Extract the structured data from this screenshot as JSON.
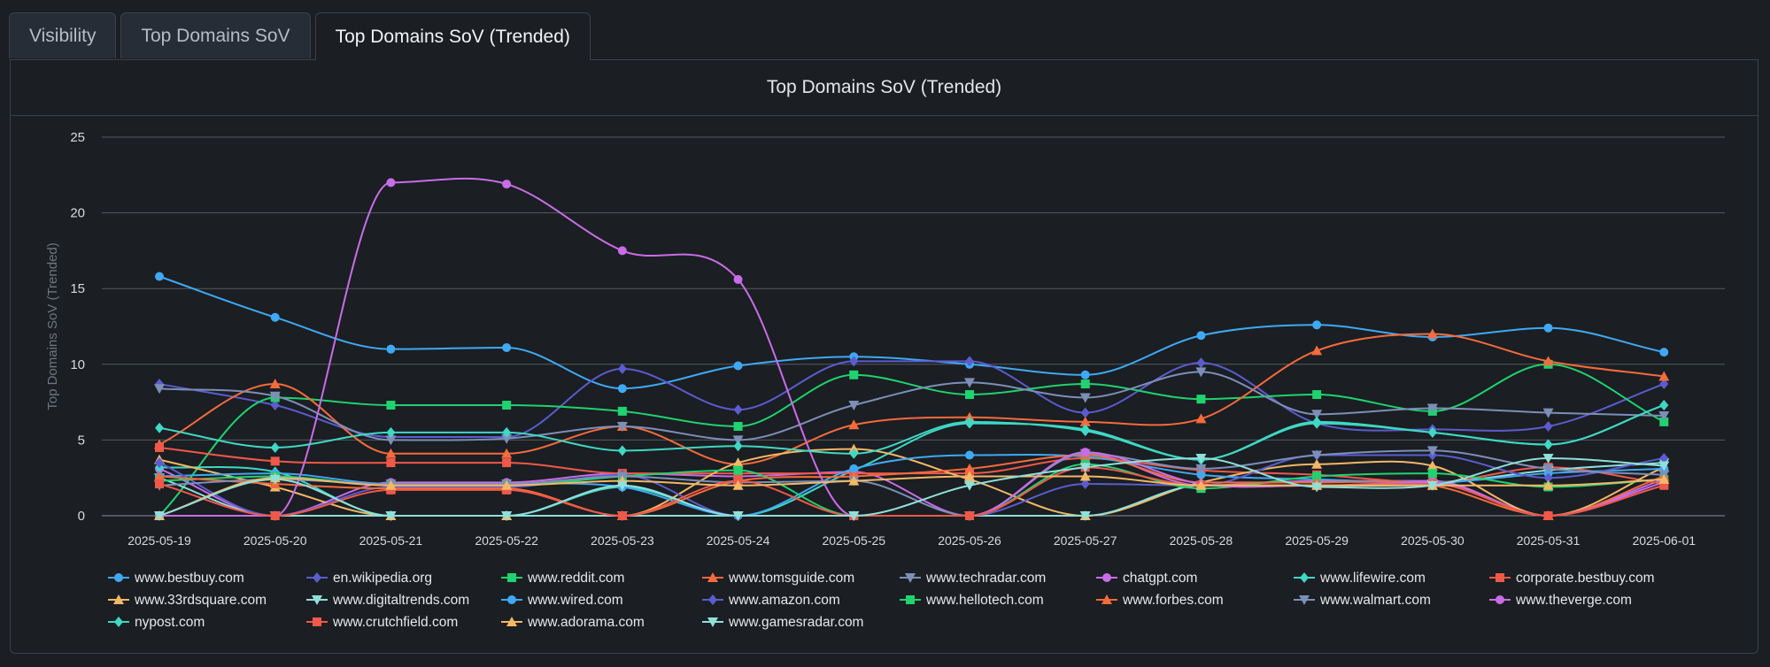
{
  "tabs": [
    {
      "label": "Visibility",
      "active": false
    },
    {
      "label": "Top Domains SoV",
      "active": false
    },
    {
      "label": "Top Domains SoV (Trended)",
      "active": true
    }
  ],
  "panel": {
    "title": "Top Domains SoV (Trended)"
  },
  "chart_data": {
    "type": "line",
    "ylabel": "Top Domains SoV (Trended)",
    "ylim": [
      0,
      25
    ],
    "yticks": [
      0,
      5,
      10,
      15,
      20,
      25
    ],
    "grid": true,
    "legend_position": "bottom",
    "x": [
      "2025-05-19",
      "2025-05-20",
      "2025-05-21",
      "2025-05-22",
      "2025-05-23",
      "2025-05-24",
      "2025-05-25",
      "2025-05-26",
      "2025-05-27",
      "2025-05-28",
      "2025-05-29",
      "2025-05-30",
      "2025-05-31",
      "2025-06-01"
    ],
    "series": [
      {
        "name": "www.bestbuy.com",
        "color": "#3fa9f5",
        "marker": "circle",
        "values": [
          15.8,
          13.1,
          11.0,
          11.1,
          8.4,
          9.9,
          10.5,
          10.0,
          9.3,
          11.9,
          12.6,
          11.8,
          12.4,
          10.8
        ]
      },
      {
        "name": "en.wikipedia.org",
        "color": "#5b5ccf",
        "marker": "diamond",
        "values": [
          8.7,
          7.3,
          5.2,
          5.2,
          9.7,
          7.0,
          10.2,
          10.2,
          6.8,
          10.1,
          6.1,
          5.7,
          5.9,
          8.7
        ]
      },
      {
        "name": "www.reddit.com",
        "color": "#1fd36f",
        "marker": "square",
        "values": [
          0,
          7.8,
          7.3,
          7.3,
          6.9,
          5.9,
          9.3,
          8.0,
          8.7,
          7.7,
          8.0,
          6.9,
          10.0,
          6.2
        ]
      },
      {
        "name": "www.tomsguide.com",
        "color": "#f56b3c",
        "marker": "triangle",
        "values": [
          4.7,
          8.7,
          4.1,
          4.1,
          5.9,
          3.4,
          6.0,
          6.5,
          6.2,
          6.4,
          10.9,
          12.0,
          10.2,
          9.2
        ]
      },
      {
        "name": "www.techradar.com",
        "color": "#7d8fb8",
        "marker": "triangle-down",
        "values": [
          8.4,
          7.9,
          5.0,
          5.1,
          5.9,
          5.0,
          7.3,
          8.8,
          7.8,
          9.5,
          6.7,
          7.1,
          6.8,
          6.6
        ]
      },
      {
        "name": "chatgpt.com",
        "color": "#c86de8",
        "marker": "circle",
        "values": [
          3.1,
          0,
          2.2,
          2.2,
          2.8,
          2.6,
          2.9,
          0,
          4.1,
          2.0,
          2.3,
          2.3,
          0,
          2.4
        ]
      },
      {
        "name": "www.lifewire.com",
        "color": "#3fd8c4",
        "marker": "diamond",
        "values": [
          3.2,
          2.9,
          0,
          0,
          1.9,
          0,
          3.0,
          6.1,
          5.7,
          3.7,
          6.1,
          5.5,
          4.7,
          7.3
        ]
      },
      {
        "name": "corporate.bestbuy.com",
        "color": "#f0584a",
        "marker": "square",
        "values": [
          4.5,
          3.6,
          3.5,
          3.5,
          2.8,
          2.8,
          2.8,
          2.8,
          3.8,
          3.0,
          2.7,
          2.2,
          3.2,
          2.1
        ]
      },
      {
        "name": "www.33rdsquare.com",
        "color": "#f2b866",
        "marker": "triangle",
        "values": [
          3.7,
          1.9,
          0,
          0,
          0,
          3.5,
          4.4,
          2.4,
          0,
          2.2,
          3.4,
          3.3,
          0,
          3.2
        ]
      },
      {
        "name": "www.digitaltrends.com",
        "color": "#8fe0da",
        "marker": "triangle-down",
        "values": [
          2.5,
          0,
          0,
          0,
          0,
          0,
          0,
          0,
          0,
          2.0,
          2.0,
          2.1,
          3.0,
          3.5
        ]
      },
      {
        "name": "www.wired.com",
        "color": "#3fa9f5",
        "marker": "circle",
        "values": [
          2.6,
          2.8,
          2.1,
          2.1,
          1.9,
          0,
          3.1,
          4.0,
          3.9,
          2.7,
          2.4,
          2.2,
          2.8,
          3.1
        ]
      },
      {
        "name": "www.amazon.com",
        "color": "#5b5ccf",
        "marker": "diamond",
        "values": [
          3.5,
          0,
          1.9,
          1.9,
          2.7,
          0,
          0,
          0,
          2.1,
          2.0,
          4.0,
          4.0,
          2.5,
          3.8
        ]
      },
      {
        "name": "www.hellotech.com",
        "color": "#1fd36f",
        "marker": "square",
        "values": [
          2.3,
          2.6,
          2.0,
          2.0,
          2.6,
          3.0,
          0,
          0,
          3.4,
          1.8,
          2.6,
          2.8,
          1.9,
          2.4
        ]
      },
      {
        "name": "www.forbes.com",
        "color": "#f56b3c",
        "marker": "triangle",
        "values": [
          2.6,
          2.1,
          1.8,
          1.8,
          0,
          2.3,
          2.6,
          3.1,
          4.0,
          2.2,
          2.2,
          2.0,
          0,
          2.6
        ]
      },
      {
        "name": "www.walmart.com",
        "color": "#7d8fb8",
        "marker": "triangle-down",
        "values": [
          2.0,
          2.4,
          2.1,
          2.1,
          2.6,
          2.2,
          2.3,
          0,
          4.1,
          3.1,
          4.0,
          4.3,
          3.1,
          2.7
        ]
      },
      {
        "name": "www.theverge.com",
        "color": "#c86de8",
        "marker": "circle",
        "values": [
          0,
          0,
          22.0,
          21.9,
          17.5,
          15.6,
          0,
          0,
          4.2,
          2.1,
          2.0,
          2.2,
          0,
          2.2
        ]
      },
      {
        "name": "nypost.com",
        "color": "#3fd8c4",
        "marker": "diamond",
        "values": [
          5.8,
          4.5,
          5.5,
          5.5,
          4.3,
          4.6,
          4.1,
          6.2,
          5.6,
          3.7,
          6.2,
          5.5,
          4.7,
          7.3
        ]
      },
      {
        "name": "www.crutchfield.com",
        "color": "#f0584a",
        "marker": "square",
        "values": [
          2.1,
          0,
          1.7,
          1.7,
          0,
          2.3,
          0,
          0,
          3.2,
          2.0,
          2.0,
          2.1,
          0,
          2.0
        ]
      },
      {
        "name": "www.adorama.com",
        "color": "#f2b866",
        "marker": "triangle",
        "values": [
          0,
          2.5,
          2.0,
          2.0,
          2.3,
          2.0,
          2.3,
          2.6,
          2.6,
          2.0,
          2.0,
          2.0,
          2.0,
          2.4
        ]
      },
      {
        "name": "www.gamesradar.com",
        "color": "#8fe0da",
        "marker": "triangle-down",
        "values": [
          0,
          2.4,
          0,
          0,
          2.0,
          0,
          0,
          2.0,
          3.2,
          3.8,
          1.9,
          2.0,
          3.8,
          3.3
        ]
      }
    ]
  }
}
